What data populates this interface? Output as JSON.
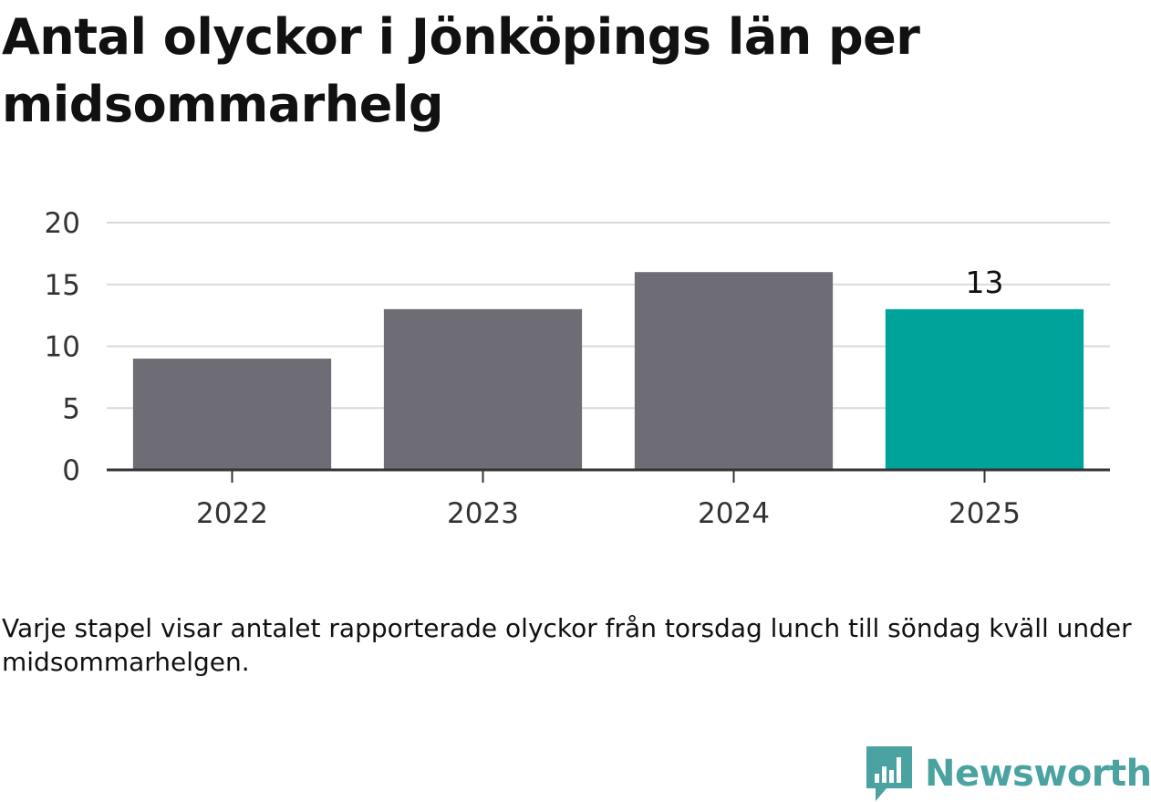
{
  "title": "Antal olyckor i Jönköpings län per midsommarhelg",
  "footnote": "Varje stapel visar antalet rapporterade olyckor från torsdag lunch till söndag kväll under midsommarhelgen.",
  "brand": {
    "name": "Newsworthy",
    "icon": "newsworthy-logo-icon",
    "color": "#4aa3a0"
  },
  "chart_data": {
    "type": "bar",
    "categories": [
      "2022",
      "2023",
      "2024",
      "2025"
    ],
    "values": [
      9,
      13,
      16,
      13
    ],
    "ylim": [
      0,
      20
    ],
    "yticks": [
      0,
      5,
      10,
      15,
      20
    ],
    "grid": true,
    "colors": {
      "bar": "#6e6d75",
      "highlight": "#00a39a",
      "grid": "#d9d9d9",
      "axis": "#333333",
      "text": "#333333"
    },
    "highlight_index": 3,
    "data_labels": [
      {
        "index": 3,
        "text": "13"
      }
    ]
  }
}
